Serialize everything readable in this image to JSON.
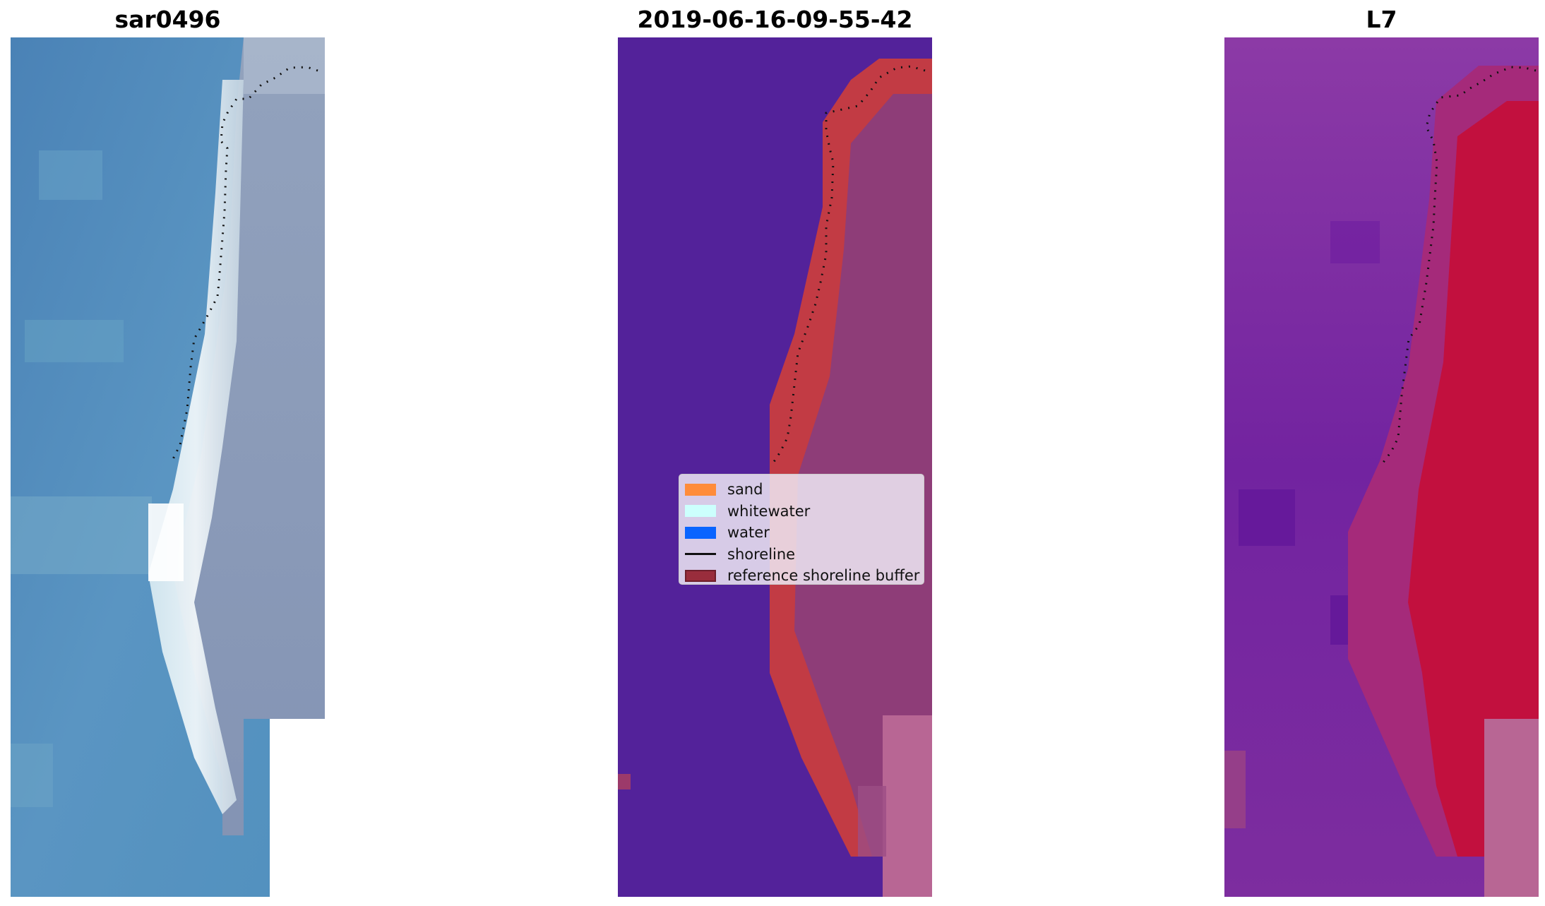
{
  "panels": {
    "rgb": {
      "title": "sar0496"
    },
    "classified": {
      "title": "2019-06-16-09-55-42"
    },
    "mndwi": {
      "title": "L7"
    }
  },
  "legend": {
    "items": [
      {
        "label": "sand",
        "color": "#ff8c3a",
        "kind": "patch"
      },
      {
        "label": "whitewater",
        "color": "#ccfffd",
        "kind": "patch"
      },
      {
        "label": "water",
        "color": "#0a64ff",
        "kind": "patch"
      },
      {
        "label": "shoreline",
        "color": "#111111",
        "kind": "line"
      },
      {
        "label": "reference shoreline buffer",
        "color": "#992d3c",
        "kind": "patch"
      }
    ]
  },
  "colors": {
    "water_class": "#53229a",
    "buffer": "#c23b44",
    "land_overlay": "#8e3d78",
    "nodata_pink": "#b86694",
    "rgb_water": "#4f8bbd",
    "rgb_land": "#8b99b5",
    "rgb_whitewater": "#e8f2f6",
    "mndwi_water": "#7a28a0",
    "mndwi_land": "#c2103e"
  }
}
